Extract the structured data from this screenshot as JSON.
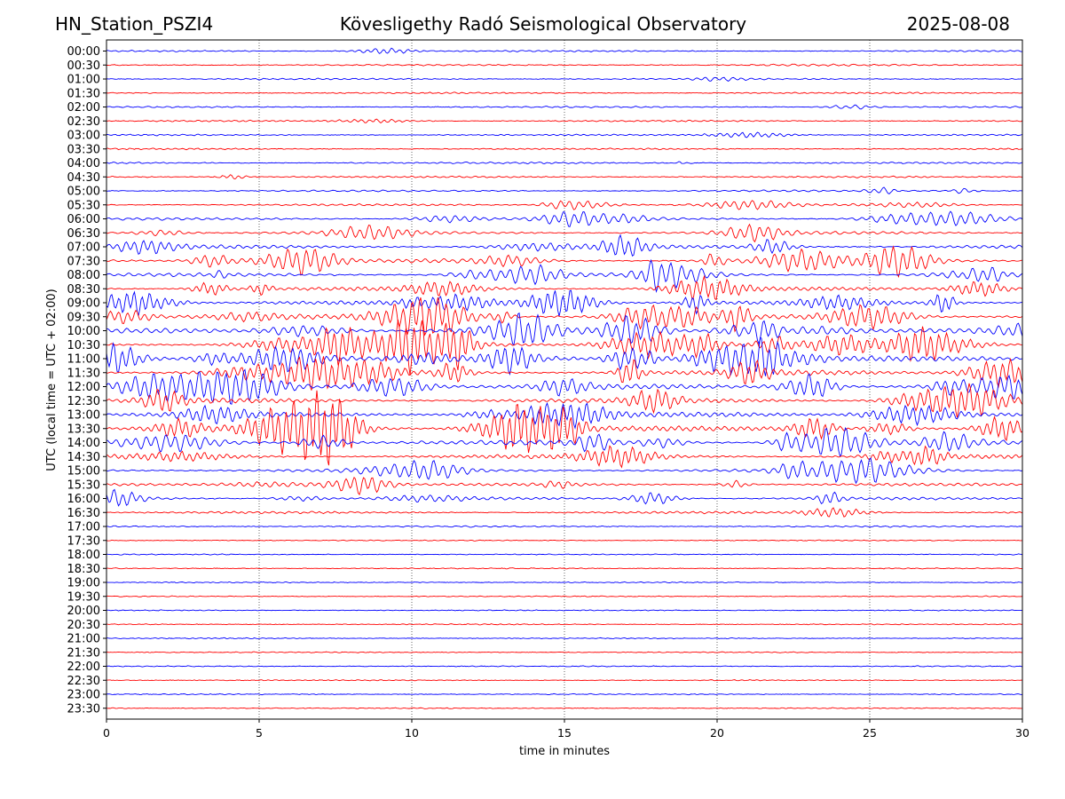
{
  "header": {
    "station": "HN_Station_PSZI4",
    "title": "Kövesligethy Radó Seismological Observatory",
    "date": "2025-08-08"
  },
  "chart_data": {
    "type": "line",
    "title": "Kövesligethy Radó Seismological Observatory",
    "xlabel": "time in minutes",
    "ylabel": "UTC (local time = UTC + 02:00)",
    "xlim": [
      0,
      30
    ],
    "x_ticks": [
      0,
      5,
      10,
      15,
      20,
      25,
      30
    ],
    "grid": "vertical dotted lines at 5-minute intervals",
    "colors": {
      "even_row": "#0000ff",
      "odd_row": "#ff0000"
    },
    "rows": [
      "00:00",
      "00:30",
      "01:00",
      "01:30",
      "02:00",
      "02:30",
      "03:00",
      "03:30",
      "04:00",
      "04:30",
      "05:00",
      "05:30",
      "06:00",
      "06:30",
      "07:00",
      "07:30",
      "08:00",
      "08:30",
      "09:00",
      "09:30",
      "10:00",
      "10:30",
      "11:00",
      "11:30",
      "12:00",
      "12:30",
      "13:00",
      "13:30",
      "14:00",
      "14:30",
      "15:00",
      "15:30",
      "16:00",
      "16:30",
      "17:00",
      "17:30",
      "18:00",
      "18:30",
      "19:00",
      "19:30",
      "20:00",
      "20:30",
      "21:00",
      "21:30",
      "22:00",
      "22:30",
      "23:00",
      "23:30"
    ],
    "row_activity": [
      0.15,
      0.15,
      0.15,
      0.15,
      0.15,
      0.15,
      0.15,
      0.15,
      0.2,
      0.2,
      0.2,
      0.25,
      0.35,
      0.45,
      0.6,
      0.6,
      0.55,
      0.55,
      0.65,
      0.75,
      0.8,
      0.85,
      0.9,
      0.9,
      0.85,
      0.8,
      0.8,
      0.85,
      0.8,
      0.65,
      0.55,
      0.4,
      0.35,
      0.3,
      0.15,
      0.05,
      0.05,
      0.05,
      0.05,
      0.05,
      0.05,
      0.05,
      0.05,
      0.05,
      0.05,
      0.05,
      0.05,
      0.05
    ]
  }
}
